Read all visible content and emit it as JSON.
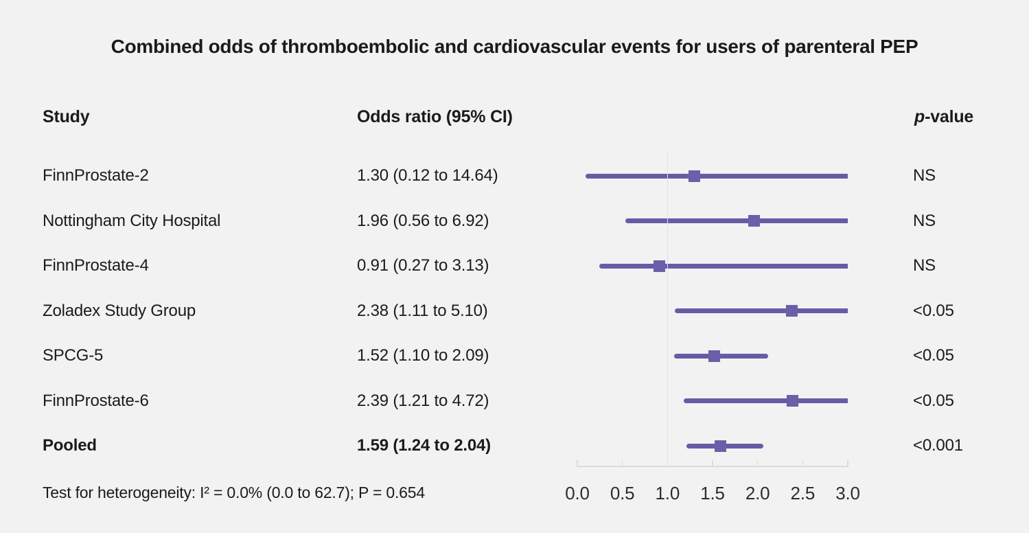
{
  "title": "Combined odds of thromboembolic and cardiovascular events for users of parenteral PEP",
  "columns": {
    "study": "Study",
    "odds_ratio": "Odds ratio (95% CI)",
    "p_italic": "p",
    "p_rest": "-value"
  },
  "studies": [
    {
      "name": "FinnProstate-2",
      "or_text": "1.30 (0.12 to 14.64)",
      "p_value": "NS",
      "or": 1.3,
      "ci_lower": 0.12,
      "ci_upper": 14.64,
      "bold": false
    },
    {
      "name": "Nottingham City Hospital",
      "or_text": "1.96 (0.56 to 6.92)",
      "p_value": "NS",
      "or": 1.96,
      "ci_lower": 0.56,
      "ci_upper": 6.92,
      "bold": false
    },
    {
      "name": "FinnProstate-4",
      "or_text": "0.91 (0.27 to 3.13)",
      "p_value": "NS",
      "or": 0.91,
      "ci_lower": 0.27,
      "ci_upper": 3.13,
      "bold": false
    },
    {
      "name": "Zoladex Study Group",
      "or_text": "2.38 (1.11 to 5.10)",
      "p_value": "<0.05",
      "or": 2.38,
      "ci_lower": 1.11,
      "ci_upper": 5.1,
      "bold": false
    },
    {
      "name": "SPCG-5",
      "or_text": "1.52 (1.10 to 2.09)",
      "p_value": "<0.05",
      "or": 1.52,
      "ci_lower": 1.1,
      "ci_upper": 2.09,
      "bold": false
    },
    {
      "name": "FinnProstate-6",
      "or_text": "2.39 (1.21 to 4.72)",
      "p_value": "<0.05",
      "or": 2.39,
      "ci_lower": 1.21,
      "ci_upper": 4.72,
      "bold": false
    },
    {
      "name": "Pooled",
      "or_text": "1.59 (1.24 to 2.04)",
      "p_value": "<0.001",
      "or": 1.59,
      "ci_lower": 1.24,
      "ci_upper": 2.04,
      "bold": true
    }
  ],
  "axis": {
    "tick_labels": [
      "0.0",
      "0.5",
      "1.0",
      "1.5",
      "2.0",
      "2.5",
      "3.0"
    ],
    "min": 0,
    "max": 3,
    "reference_line": 1.0
  },
  "footnote": "Test for heterogeneity: I² = 0.0% (0.0 to 62.7); P = 0.654",
  "colors": {
    "background": "#f2f2f2",
    "ci_line": "#685ba6",
    "marker": "#6c5ea9",
    "reference_line": "#dce0e6",
    "axis_line": "#d8dce1",
    "text": "#1b1b1b"
  },
  "chart_data": {
    "type": "scatter",
    "variant": "forest-plot",
    "title": "Combined odds of thromboembolic and cardiovascular events for users of parenteral PEP",
    "categories": [
      "FinnProstate-2",
      "Nottingham City Hospital",
      "FinnProstate-4",
      "Zoladex Study Group",
      "SPCG-5",
      "FinnProstate-6",
      "Pooled"
    ],
    "series": [
      {
        "name": "Odds ratio",
        "values": [
          1.3,
          1.96,
          0.91,
          2.38,
          1.52,
          2.39,
          1.59
        ]
      },
      {
        "name": "95% CI lower",
        "values": [
          0.12,
          0.56,
          0.27,
          1.11,
          1.1,
          1.21,
          1.24
        ]
      },
      {
        "name": "95% CI upper",
        "values": [
          14.64,
          6.92,
          3.13,
          5.1,
          2.09,
          4.72,
          2.04
        ]
      }
    ],
    "p_values": [
      "NS",
      "NS",
      "NS",
      "<0.05",
      "<0.05",
      "<0.05",
      "<0.001"
    ],
    "xlabel": "",
    "ylabel": "",
    "xlim": [
      0,
      3
    ],
    "x_ticks": [
      0.0,
      0.5,
      1.0,
      1.5,
      2.0,
      2.5,
      3.0
    ],
    "reference_line_x": 1.0,
    "ci_truncated_at": 3.0,
    "grid": false,
    "legend_position": "none",
    "footnote": "Test for heterogeneity: I² = 0.0% (0.0 to 62.7); P = 0.654"
  }
}
